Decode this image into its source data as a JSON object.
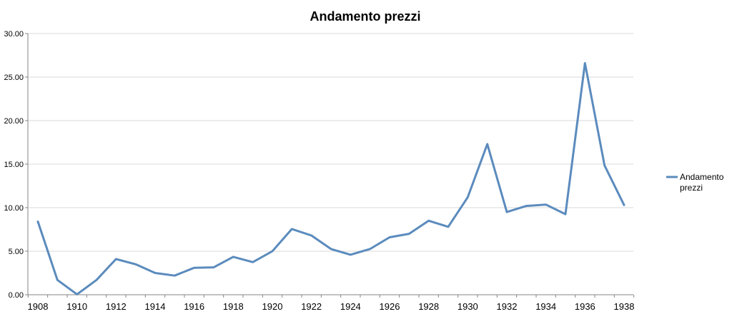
{
  "chart_data": {
    "type": "line",
    "title": "Andamento prezzi",
    "xlabel": "",
    "ylabel": "",
    "x": [
      1908,
      1909,
      1910,
      1911,
      1912,
      1913,
      1914,
      1915,
      1916,
      1917,
      1918,
      1919,
      1920,
      1921,
      1922,
      1923,
      1924,
      1925,
      1926,
      1927,
      1928,
      1929,
      1930,
      1931,
      1932,
      1933,
      1934,
      1935,
      1936,
      1937,
      1938
    ],
    "x_tick_labels": [
      "1908",
      "1910",
      "1912",
      "1914",
      "1916",
      "1918",
      "1920",
      "1922",
      "1924",
      "1926",
      "1928",
      "1930",
      "1932",
      "1934",
      "1936",
      "1938"
    ],
    "y_tick_labels": [
      "0.00",
      "5.00",
      "10.00",
      "15.00",
      "20.00",
      "25.00",
      "30.00"
    ],
    "ylim": [
      0,
      30
    ],
    "grid": "horizontal",
    "legend_position": "right",
    "series": [
      {
        "name": "Andamento prezzi",
        "legend_lines": [
          "Andamento",
          "prezzi"
        ],
        "color": "#5b8bbd",
        "values": [
          8.4,
          1.7,
          0.05,
          1.7,
          4.1,
          3.5,
          2.5,
          2.2,
          3.1,
          3.15,
          4.35,
          3.75,
          5.0,
          7.55,
          6.8,
          5.25,
          4.6,
          5.25,
          6.6,
          7.0,
          8.5,
          7.8,
          11.2,
          17.3,
          9.5,
          10.2,
          10.35,
          9.25,
          26.6,
          14.85,
          10.3
        ]
      }
    ]
  }
}
